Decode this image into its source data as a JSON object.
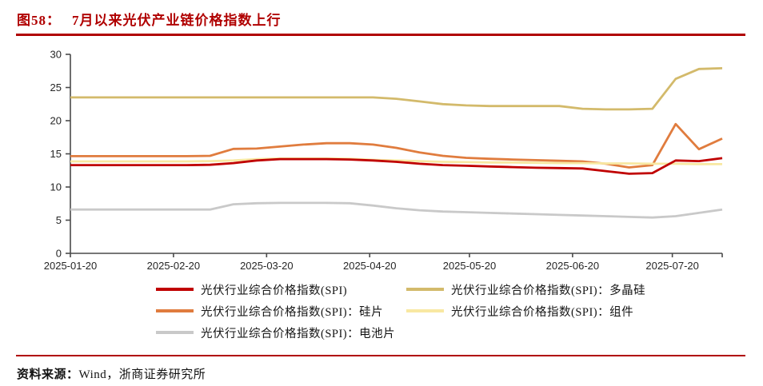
{
  "header": {
    "figure_label": "图58：",
    "title_text": "7月以来光伏产业链价格指数上行",
    "accent_color": "#B00000"
  },
  "source": {
    "label": "资料来源：",
    "text": "Wind，浙商证券研究所"
  },
  "chart_data": {
    "type": "line",
    "title": "7月以来光伏产业链价格指数上行",
    "xlabel": "",
    "ylabel": "",
    "ylim": [
      0,
      30
    ],
    "ytick_step": 5,
    "grid": false,
    "legend_position": "bottom",
    "axis_color": "#4a4a4a",
    "tick_label_color": "#262626",
    "xtick_labels": [
      "2025-01-20",
      "2025-02-20",
      "2025-03-20",
      "2025-04-20",
      "2025-05-20",
      "2025-06-20",
      "2025-07-20"
    ],
    "xtick_day_offsets": [
      0,
      31,
      59,
      90,
      120,
      151,
      181
    ],
    "x_day_max": 196,
    "x_dates": [
      "2025-01-20",
      "2025-01-27",
      "2025-02-03",
      "2025-02-10",
      "2025-02-17",
      "2025-02-24",
      "2025-03-03",
      "2025-03-10",
      "2025-03-17",
      "2025-03-24",
      "2025-03-31",
      "2025-04-07",
      "2025-04-14",
      "2025-04-21",
      "2025-04-28",
      "2025-05-05",
      "2025-05-12",
      "2025-05-19",
      "2025-05-26",
      "2025-06-02",
      "2025-06-09",
      "2025-06-16",
      "2025-06-23",
      "2025-06-30",
      "2025-07-07",
      "2025-07-14",
      "2025-07-21",
      "2025-07-28",
      "2025-08-04"
    ],
    "x_day_offsets": [
      0,
      7,
      14,
      21,
      28,
      35,
      42,
      49,
      56,
      63,
      70,
      77,
      84,
      91,
      98,
      105,
      112,
      119,
      126,
      133,
      140,
      147,
      154,
      161,
      168,
      175,
      182,
      189,
      196
    ],
    "series": [
      {
        "name": "光伏行业综合价格指数(SPI)",
        "color": "#C00000",
        "values": [
          13.3,
          13.3,
          13.3,
          13.3,
          13.3,
          13.3,
          13.35,
          13.6,
          14.0,
          14.2,
          14.2,
          14.2,
          14.15,
          14.0,
          13.8,
          13.5,
          13.3,
          13.2,
          13.1,
          13.0,
          12.9,
          12.85,
          12.8,
          12.4,
          12.0,
          12.1,
          14.0,
          13.9,
          14.35
        ]
      },
      {
        "name": "光伏行业综合价格指数(SPI)：多晶硅",
        "color": "#D3BA6B",
        "values": [
          23.5,
          23.5,
          23.5,
          23.5,
          23.5,
          23.5,
          23.5,
          23.5,
          23.5,
          23.5,
          23.5,
          23.5,
          23.5,
          23.5,
          23.3,
          22.9,
          22.5,
          22.3,
          22.2,
          22.2,
          22.2,
          22.2,
          21.8,
          21.7,
          21.7,
          21.8,
          26.3,
          27.8,
          27.9
        ]
      },
      {
        "name": "光伏行业综合价格指数(SPI)：硅片",
        "color": "#E07C3E",
        "values": [
          14.65,
          14.65,
          14.65,
          14.65,
          14.65,
          14.65,
          14.7,
          15.75,
          15.8,
          16.1,
          16.4,
          16.6,
          16.6,
          16.4,
          15.9,
          15.2,
          14.7,
          14.4,
          14.25,
          14.15,
          14.05,
          13.95,
          13.85,
          13.5,
          12.95,
          13.3,
          19.5,
          15.7,
          17.3
        ]
      },
      {
        "name": "光伏行业综合价格指数(SPI)：组件",
        "color": "#F8E8A2",
        "values": [
          13.85,
          13.85,
          13.85,
          13.85,
          13.85,
          13.85,
          13.9,
          14.0,
          14.2,
          14.3,
          14.3,
          14.3,
          14.25,
          14.1,
          14.0,
          13.9,
          13.8,
          13.75,
          13.7,
          13.7,
          13.65,
          13.6,
          13.6,
          13.55,
          13.55,
          13.5,
          13.5,
          13.45,
          13.45
        ]
      },
      {
        "name": "光伏行业综合价格指数(SPI)：电池片",
        "color": "#C9C9C9",
        "values": [
          6.6,
          6.6,
          6.6,
          6.6,
          6.6,
          6.6,
          6.6,
          7.4,
          7.55,
          7.6,
          7.6,
          7.6,
          7.55,
          7.2,
          6.8,
          6.5,
          6.3,
          6.2,
          6.1,
          6.0,
          5.9,
          5.8,
          5.7,
          5.6,
          5.5,
          5.4,
          5.6,
          6.1,
          6.6
        ]
      }
    ],
    "draw_order": [
      4,
      1,
      2,
      3,
      0
    ]
  }
}
